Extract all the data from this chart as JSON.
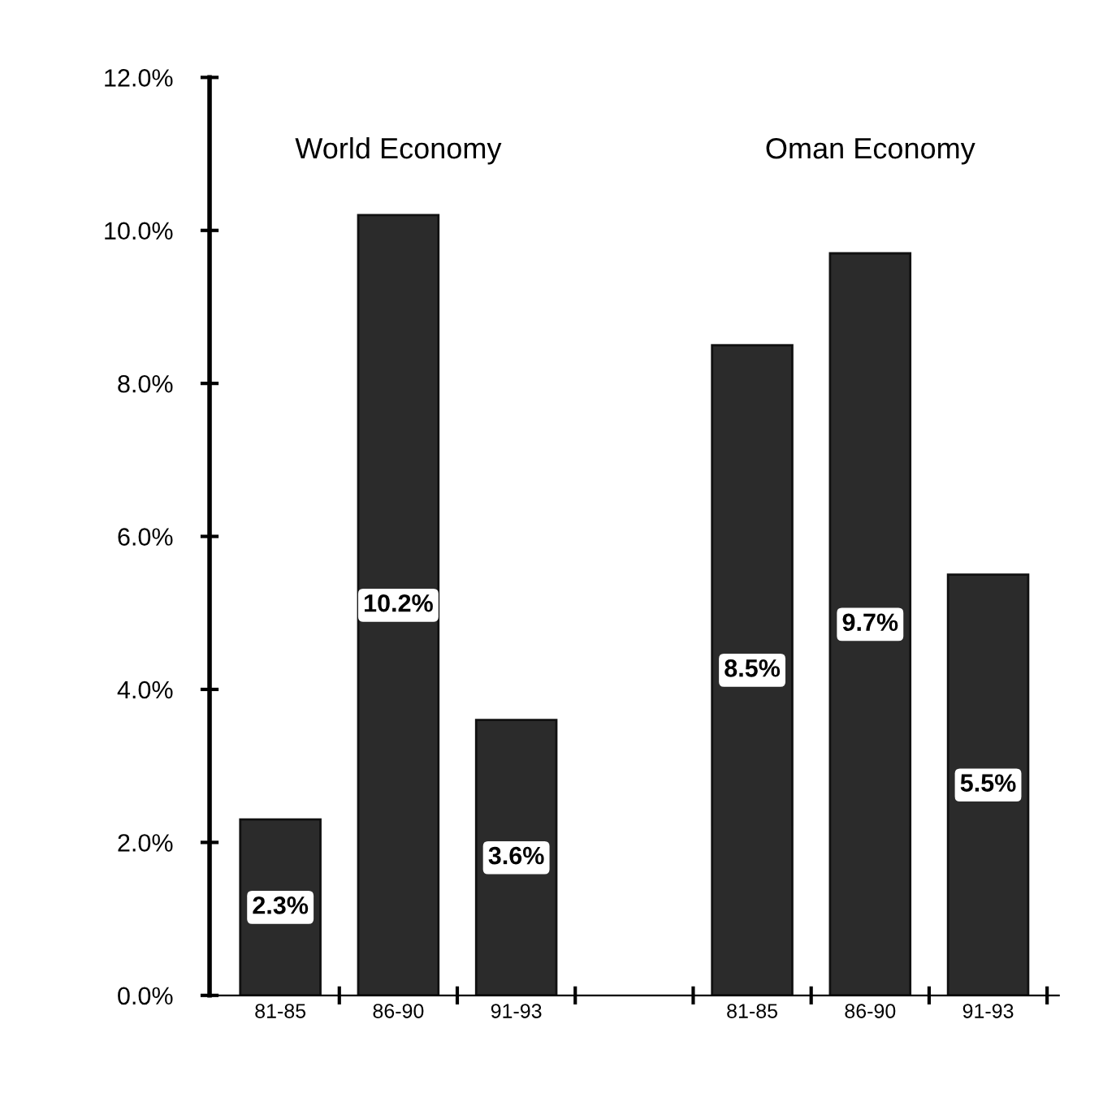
{
  "chart_data": {
    "type": "bar",
    "categories": [
      "81-85",
      "86-90",
      "91-93",
      null,
      "81-85",
      "86-90",
      "91-93"
    ],
    "values": [
      2.3,
      10.2,
      3.6,
      null,
      8.5,
      9.7,
      5.5
    ],
    "value_labels": [
      "2.3%",
      "10.2%",
      "3.6%",
      null,
      "8.5%",
      "9.7%",
      "5.5%"
    ],
    "color": "#2b2b2b",
    "ylim": [
      0,
      12
    ],
    "yticks": [
      {
        "value": 0,
        "label": "0.0%"
      },
      {
        "value": 2,
        "label": "2.0%"
      },
      {
        "value": 4,
        "label": "4.0%"
      },
      {
        "value": 6,
        "label": "6.0%"
      },
      {
        "value": 8,
        "label": "8.0%"
      },
      {
        "value": 10,
        "label": "10.0%"
      },
      {
        "value": 12,
        "label": "12.0%"
      }
    ],
    "annotations": [
      "World Economy",
      "Oman Economy"
    ],
    "grid": false,
    "legend": false
  }
}
